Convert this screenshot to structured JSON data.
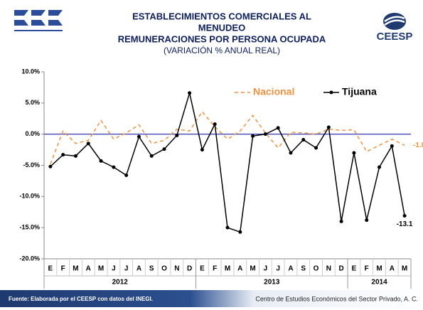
{
  "chart_data": {
    "type": "line",
    "title": [
      "ESTABLECIMIENTOS COMERCIALES AL",
      "MENUDEO",
      "REMUNERACIONES POR PERSONA OCUPADA"
    ],
    "subtitle": "(VARIACIÓN % ANUAL REAL)",
    "logo": "CEESP",
    "categories": [
      "E",
      "F",
      "M",
      "A",
      "M",
      "J",
      "J",
      "A",
      "S",
      "O",
      "N",
      "D",
      "E",
      "F",
      "M",
      "A",
      "M",
      "J",
      "J",
      "A",
      "S",
      "O",
      "N",
      "D",
      "E",
      "F",
      "M",
      "A",
      "M"
    ],
    "years": [
      "2012",
      "2013",
      "2014"
    ],
    "series": [
      {
        "name": "Nacional",
        "color": "#f0923e",
        "dashed": true,
        "values": [
          -4.8,
          0.5,
          -1.5,
          -1.0,
          2.2,
          -0.8,
          0.2,
          1.5,
          -1.5,
          -1.0,
          0.8,
          0.5,
          3.6,
          1.2,
          -0.8,
          0.5,
          3.0,
          0.2,
          -2.2,
          0.3,
          0.2,
          0.0,
          0.8,
          0.6,
          0.7,
          -2.8,
          -1.8,
          -0.8,
          -1.8
        ]
      },
      {
        "name": "Tijuana",
        "color": "#000000",
        "dashed": false,
        "values": [
          -5.2,
          -3.3,
          -3.5,
          -1.5,
          -4.3,
          -5.3,
          -6.6,
          -0.4,
          -3.5,
          -2.4,
          -0.2,
          6.6,
          -2.5,
          1.6,
          -15.0,
          -15.7,
          -0.3,
          0.0,
          1.0,
          -3.0,
          -0.9,
          -2.2,
          1.1,
          -14.0,
          -3.0,
          -13.8,
          -5.3,
          -1.9,
          -13.1
        ]
      }
    ],
    "ylim": [
      -20,
      10
    ],
    "yticks": [
      {
        "value": -20,
        "label": "-20.0%"
      },
      {
        "value": -15,
        "label": "-15.0%"
      },
      {
        "value": -10,
        "label": "-10.0%"
      },
      {
        "value": -5,
        "label": "-5.0%"
      },
      {
        "value": 0,
        "label": "0.0%"
      },
      {
        "value": 5,
        "label": "5.0%"
      },
      {
        "value": 10,
        "label": "10.0%"
      }
    ],
    "zero_line_color": "#1f1fa8",
    "legend": "top-right",
    "source": "Fuente: Elaborada por el CEESP con datos del INEGI.",
    "footer": "Centro de Estudios Económicos del Sector Privado, A. C."
  }
}
